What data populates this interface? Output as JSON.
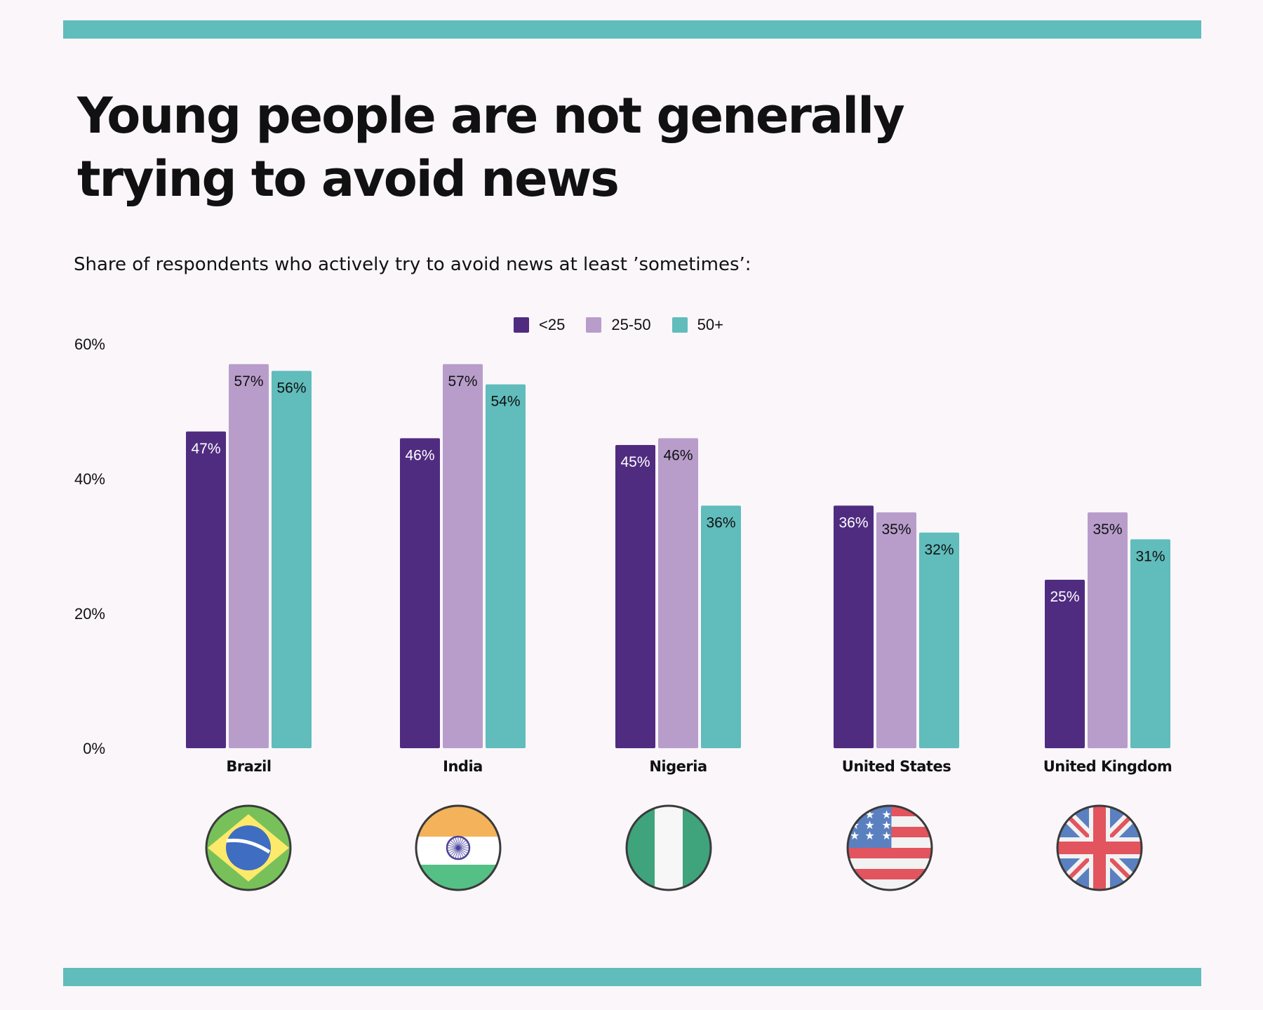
{
  "title_line1": "Young people are not generally",
  "title_line2": "trying to avoid news",
  "subtitle": "Share of respondents who actively try to avoid news at least ’sometimes’:",
  "colors": {
    "band": "#61bcbc",
    "under25": "#502c80",
    "mid": "#b89dcb",
    "over50": "#61bcbc"
  },
  "chart_data": {
    "type": "bar",
    "title": "Young people are not generally trying to avoid news",
    "subtitle": "Share of respondents who actively try to avoid news at least ’sometimes’:",
    "xlabel": "",
    "ylabel": "",
    "ylim": [
      0,
      60
    ],
    "yticks": [
      0,
      20,
      40,
      60
    ],
    "ytick_labels": [
      "0%",
      "20%",
      "40%",
      "60%"
    ],
    "grid": false,
    "legend_position": "top-center",
    "categories": [
      "Brazil",
      "India",
      "Nigeria",
      "United States",
      "United Kingdom"
    ],
    "series": [
      {
        "name": "<25",
        "color": "#502c80",
        "values": [
          47,
          46,
          45,
          36,
          25
        ],
        "labels": [
          "47%",
          "46%",
          "45%",
          "36%",
          "25%"
        ]
      },
      {
        "name": "25-50",
        "color": "#b89dcb",
        "values": [
          57,
          57,
          46,
          35,
          35
        ],
        "labels": [
          "57%",
          "57%",
          "46%",
          "35%",
          "35%"
        ]
      },
      {
        "name": "50+",
        "color": "#61bcbc",
        "values": [
          56,
          54,
          36,
          32,
          31
        ],
        "labels": [
          "56%",
          "54%",
          "36%",
          "32%",
          "31%"
        ]
      }
    ],
    "flags": [
      "brazil-flag",
      "india-flag",
      "nigeria-flag",
      "usa-flag",
      "uk-flag"
    ]
  }
}
